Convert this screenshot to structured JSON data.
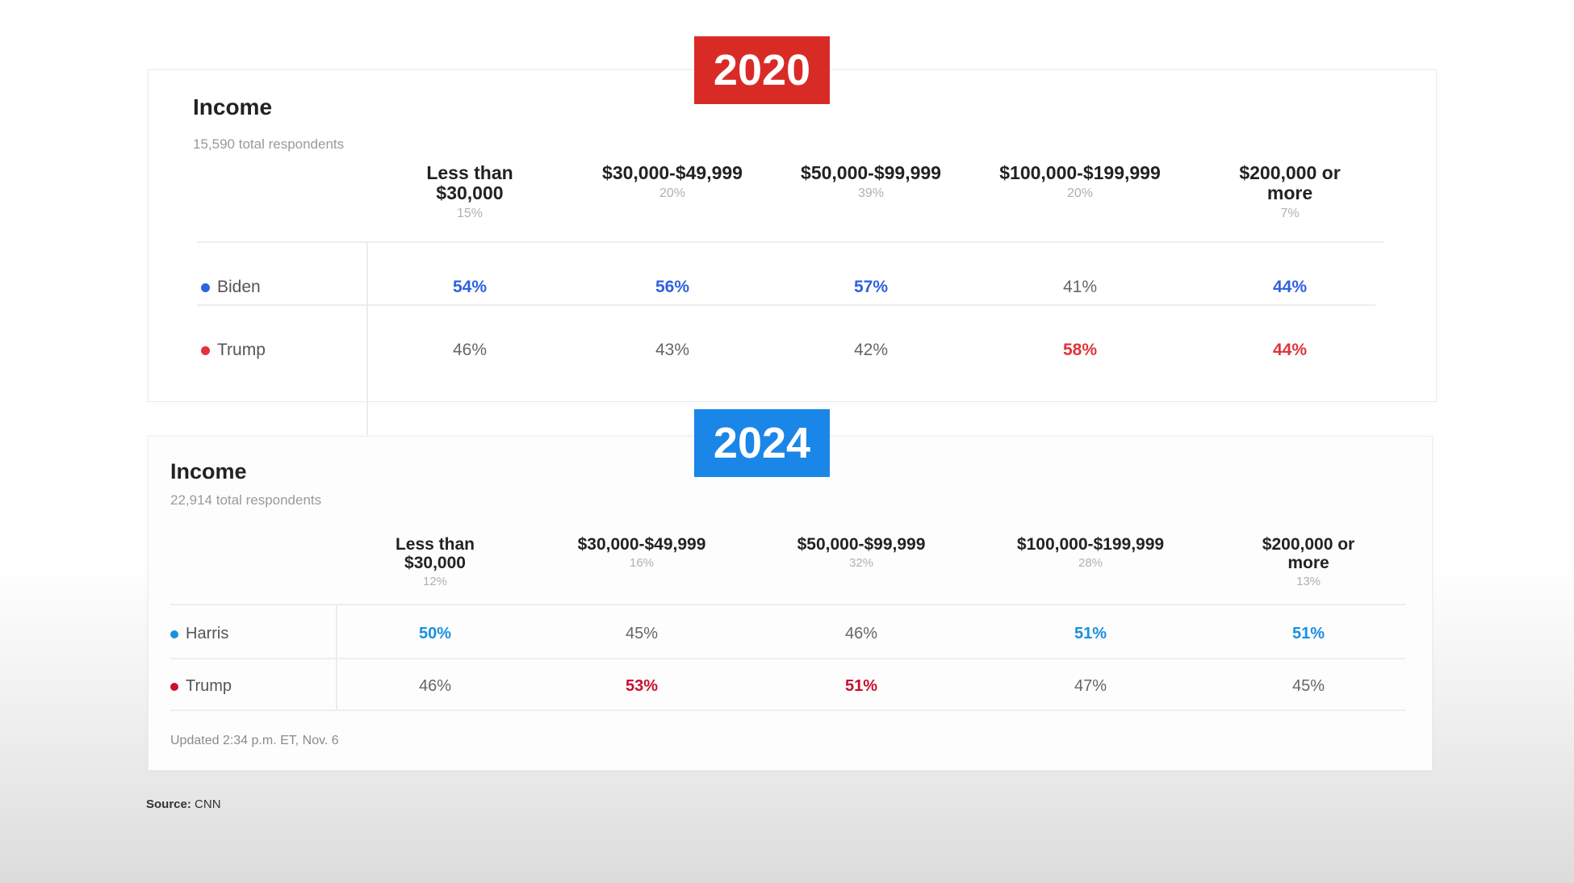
{
  "chart_data": [
    {
      "type": "table",
      "year_badge": "2020",
      "title": "Income",
      "subtitle": "15,590 total respondents",
      "categories": [
        {
          "label": "Less than\n$30,000",
          "share": "15%"
        },
        {
          "label": "$30,000-$49,999",
          "share": "20%"
        },
        {
          "label": "$50,000-$99,999",
          "share": "39%"
        },
        {
          "label": "$100,000-$199,999",
          "share": "20%"
        },
        {
          "label": "$200,000 or\nmore",
          "share": "7%"
        }
      ],
      "series": [
        {
          "name": "Biden",
          "color": "#2f62e0",
          "values": [
            "54%",
            "56%",
            "57%",
            "41%",
            "44%"
          ],
          "bold": [
            true,
            true,
            true,
            false,
            true
          ]
        },
        {
          "name": "Trump",
          "color": "#e0343a",
          "values": [
            "46%",
            "43%",
            "42%",
            "58%",
            "44%"
          ],
          "bold": [
            false,
            false,
            false,
            true,
            true
          ]
        }
      ]
    },
    {
      "type": "table",
      "year_badge": "2024",
      "title": "Income",
      "subtitle": "22,914 total respondents",
      "categories": [
        {
          "label": "Less than\n$30,000",
          "share": "12%"
        },
        {
          "label": "$30,000-$49,999",
          "share": "16%"
        },
        {
          "label": "$50,000-$99,999",
          "share": "32%"
        },
        {
          "label": "$100,000-$199,999",
          "share": "28%"
        },
        {
          "label": "$200,000 or\nmore",
          "share": "13%"
        }
      ],
      "series": [
        {
          "name": "Harris",
          "color": "#1a8fe0",
          "values": [
            "50%",
            "45%",
            "46%",
            "51%",
            "51%"
          ],
          "bold": [
            true,
            false,
            false,
            true,
            true
          ]
        },
        {
          "name": "Trump",
          "color": "#c8102e",
          "values": [
            "46%",
            "53%",
            "51%",
            "47%",
            "45%"
          ],
          "bold": [
            false,
            true,
            true,
            false,
            false
          ]
        }
      ],
      "footnote": "Updated 2:34 p.m. ET, Nov. 6"
    }
  ],
  "source": {
    "label": "Source:",
    "value": "CNN"
  },
  "colors": {
    "badge_2020": "#d92b26",
    "badge_2024": "#1a86e8",
    "text_muted": "#666666"
  }
}
